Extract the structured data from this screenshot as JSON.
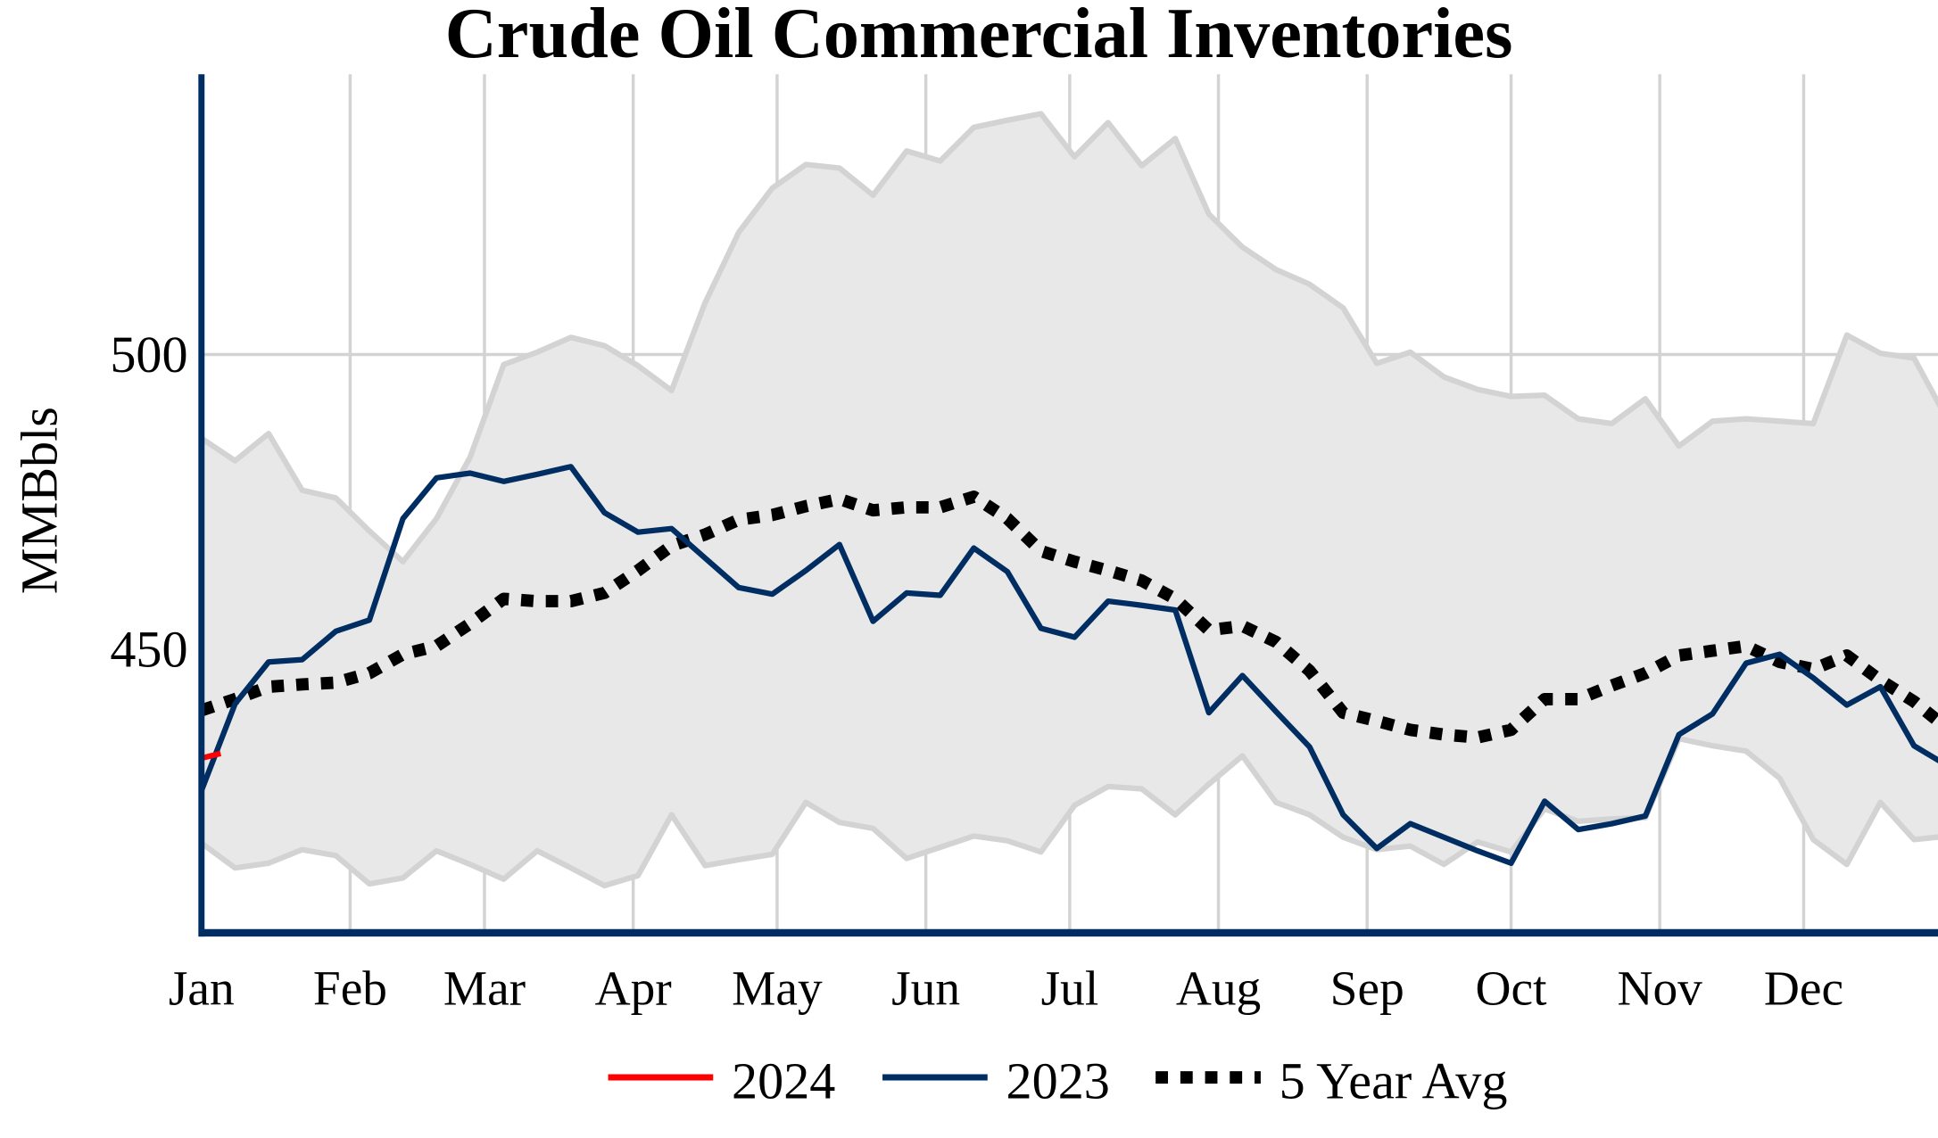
{
  "chart_data": {
    "type": "line",
    "title": "Crude Oil Commercial Inventories",
    "xlabel": "",
    "ylabel": "MMBbls",
    "ylim": [
      402,
      547.5
    ],
    "xlim": [
      "Jan 1",
      "Dec 29"
    ],
    "grid": true,
    "legend_position": "bottom",
    "x_ticks": [
      "Jan",
      "Feb",
      "Mar",
      "Apr",
      "May",
      "Jun",
      "Jul",
      "Aug",
      "Sep",
      "Oct",
      "Nov",
      "Dec"
    ],
    "y_ticks": [
      450,
      500
    ],
    "x": [
      "Jan 1",
      "Jan 8",
      "Jan 15",
      "Jan 22",
      "Jan 29",
      "Feb 5",
      "Feb 12",
      "Feb 19",
      "Feb 26",
      "Mar 5",
      "Mar 12",
      "Mar 19",
      "Mar 26",
      "Apr 2",
      "Apr 9",
      "Apr 16",
      "Apr 23",
      "Apr 30",
      "May 7",
      "May 14",
      "May 21",
      "May 28",
      "Jun 4",
      "Jun 11",
      "Jun 18",
      "Jun 25",
      "Jul 2",
      "Jul 9",
      "Jul 16",
      "Jul 23",
      "Jul 30",
      "Aug 6",
      "Aug 13",
      "Aug 20",
      "Aug 27",
      "Sep 3",
      "Sep 10",
      "Sep 17",
      "Sep 24",
      "Oct 1",
      "Oct 8",
      "Oct 15",
      "Oct 22",
      "Oct 29",
      "Nov 5",
      "Nov 12",
      "Nov 19",
      "Nov 26",
      "Dec 3",
      "Dec 10",
      "Dec 17",
      "Dec 24",
      "Dec 31"
    ],
    "range_band": {
      "color": "#e8e8e8",
      "edge_color": "#d3d3d3",
      "upper": [
        485.8,
        482.0,
        486.6,
        477.0,
        475.7,
        470.1,
        464.9,
        472.2,
        482.6,
        498.3,
        500.4,
        502.9,
        501.5,
        498.1,
        493.9,
        508.8,
        520.7,
        528.2,
        532.2,
        531.6,
        527.0,
        534.5,
        532.8,
        538.5,
        539.7,
        540.8,
        533.5,
        539.3,
        532.0,
        536.6,
        523.8,
        518.2,
        514.4,
        511.9,
        507.9,
        498.5,
        500.4,
        496.2,
        494.1,
        492.9,
        493.1,
        489.1,
        488.3,
        492.5,
        484.5,
        488.7,
        489.1,
        488.7,
        488.3,
        503.3,
        500.2,
        499.4,
        488.9
      ],
      "lower": [
        417.2,
        413.0,
        413.8,
        416.1,
        415.1,
        410.3,
        411.3,
        415.9,
        413.6,
        411.1,
        415.9,
        413.0,
        410.0,
        411.7,
        422.0,
        413.4,
        414.4,
        415.3,
        424.1,
        420.7,
        419.7,
        414.6,
        416.5,
        418.4,
        417.6,
        415.7,
        423.6,
        426.8,
        426.4,
        422.0,
        427.2,
        432.0,
        424.1,
        422.0,
        418.2,
        416.1,
        416.7,
        413.6,
        417.4,
        415.7,
        423.0,
        420.9,
        421.3,
        421.5,
        434.9,
        433.7,
        432.8,
        428.2,
        417.8,
        413.6,
        424.1,
        417.8,
        418.4
      ]
    },
    "series": [
      {
        "name": "2024",
        "color": "#ff0000",
        "style": "solid",
        "x": [
          "Jan 1",
          "Jan 5"
        ],
        "values": [
          431.6,
          432.4
        ]
      },
      {
        "name": "2023",
        "color": "#002d62",
        "style": "solid",
        "values": [
          426.1,
          440.8,
          447.9,
          448.3,
          453.1,
          455.0,
          472.2,
          479.1,
          479.9,
          478.5,
          479.7,
          481.0,
          473.2,
          469.9,
          470.5,
          465.5,
          460.5,
          459.4,
          463.4,
          467.8,
          454.8,
          459.6,
          459.2,
          467.2,
          463.2,
          453.6,
          452.1,
          458.2,
          457.5,
          456.7,
          439.3,
          445.6,
          439.5,
          433.5,
          422.0,
          416.3,
          420.5,
          418.2,
          415.9,
          413.8,
          424.3,
          419.5,
          420.5,
          421.8,
          435.6,
          439.1,
          447.7,
          449.2,
          445.2,
          440.6,
          443.7,
          433.7,
          430.3
        ]
      },
      {
        "name": "5 Year Avg",
        "color": "#000000",
        "style": "dotted",
        "values": [
          439.7,
          441.6,
          443.7,
          444.1,
          444.4,
          446.0,
          449.2,
          450.6,
          454.4,
          458.6,
          458.2,
          458.2,
          459.6,
          463.4,
          467.6,
          469.5,
          472.0,
          472.8,
          474.3,
          475.5,
          473.6,
          474.1,
          474.1,
          475.9,
          472.2,
          466.7,
          464.9,
          463.4,
          461.7,
          458.6,
          453.3,
          454.0,
          451.3,
          446.4,
          439.3,
          437.9,
          436.4,
          435.6,
          435.1,
          436.4,
          441.6,
          441.6,
          443.9,
          446.0,
          449.0,
          449.8,
          450.6,
          447.9,
          446.7,
          449.0,
          444.8,
          441.2,
          436.6
        ]
      }
    ],
    "axis_color": "#002d62",
    "grid_color": "#d3d3d3"
  }
}
